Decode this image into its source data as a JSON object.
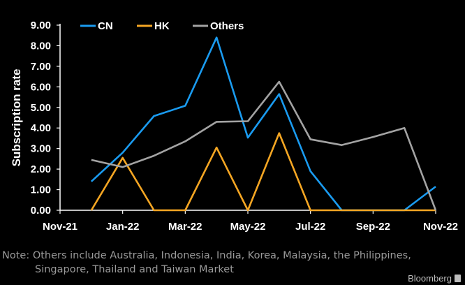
{
  "chart_data": {
    "type": "line",
    "x": [
      "Dec-21",
      "Jan-22",
      "Feb-22",
      "Mar-22",
      "Apr-22",
      "May-22",
      "Jun-22",
      "Jul-22",
      "Aug-22",
      "Sep-22",
      "Oct-22",
      "Nov-22"
    ],
    "x_tick_labels": [
      "Nov-21",
      "Jan-22",
      "Mar-22",
      "May-22",
      "Jul-22",
      "Sep-22",
      "Nov-22"
    ],
    "x_tick_positions": [
      "Nov-21",
      "Jan-22",
      "Mar-22",
      "May-22",
      "Jul-22",
      "Sep-22",
      "Nov-22"
    ],
    "ylabel": "Subscription rate",
    "ylim": [
      0,
      9
    ],
    "y_ticks": [
      "0.00",
      "1.00",
      "2.00",
      "3.00",
      "4.00",
      "5.00",
      "6.00",
      "7.00",
      "8.00",
      "9.00"
    ],
    "legend_position": "top",
    "grid": false,
    "series": [
      {
        "name": "CN",
        "color": "#1a9bf0",
        "values": [
          1.4,
          2.8,
          4.58,
          5.08,
          8.4,
          3.53,
          5.65,
          1.9,
          0.0,
          0.0,
          0.0,
          1.15
        ]
      },
      {
        "name": "HK",
        "color": "#f5a623",
        "values": [
          0.0,
          2.55,
          0.0,
          0.0,
          3.05,
          0.0,
          3.75,
          0.0,
          0.0,
          0.0,
          0.0,
          0.0
        ]
      },
      {
        "name": "Others",
        "color": "#a3a3a3",
        "values": [
          2.45,
          2.1,
          2.65,
          3.35,
          4.3,
          4.33,
          6.25,
          3.45,
          3.17,
          3.56,
          4.0,
          0.0
        ]
      }
    ]
  },
  "note": {
    "line1": "Note: Others include Australia, Indonesia, India, Korea, Malaysia, the Philippines,",
    "line2": "Singapore, Thailand and Taiwan Market"
  },
  "brand": "Bloomberg"
}
